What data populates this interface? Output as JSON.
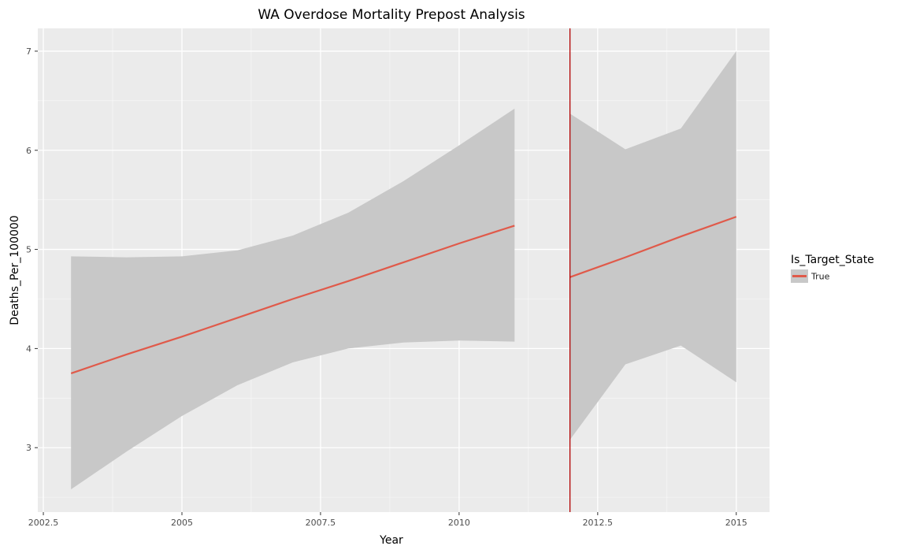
{
  "chart_data": {
    "type": "line",
    "title": "WA Overdose Mortality Prepost Analysis",
    "xlabel": "Year",
    "ylabel": "Deaths_Per_100000",
    "xlim": [
      2002.4,
      2015.6
    ],
    "ylim": [
      2.35,
      7.23
    ],
    "x_ticks": [
      2002.5,
      2005,
      2007.5,
      2010,
      2012.5,
      2015
    ],
    "x_tick_labels": [
      "2002.5",
      "2005",
      "2007.5",
      "2010",
      "2012.5",
      "2015"
    ],
    "y_ticks": [
      3,
      4,
      5,
      6,
      7
    ],
    "y_tick_labels": [
      "3",
      "4",
      "5",
      "6",
      "7"
    ],
    "grid": true,
    "intervention_line": {
      "x": 2012,
      "color": "#b20000"
    },
    "legend": {
      "title": "Is_Target_State",
      "placement": "right",
      "entries": [
        {
          "label": "True",
          "color": "#e05a4a"
        }
      ]
    },
    "colors": {
      "panel_background": "#ebebeb",
      "grid_major": "#ffffff",
      "ribbon": "#c8c8c8",
      "line": "#e05a4a"
    },
    "series": [
      {
        "segment": "pre",
        "x": [
          2003,
          2004,
          2005,
          2006,
          2007,
          2008,
          2009,
          2010,
          2011
        ],
        "y": [
          3.75,
          3.94,
          4.12,
          4.31,
          4.5,
          4.68,
          4.87,
          5.06,
          5.24
        ],
        "lower": [
          2.58,
          2.96,
          3.32,
          3.63,
          3.86,
          4.0,
          4.06,
          4.08,
          4.07
        ],
        "upper": [
          4.93,
          4.92,
          4.93,
          4.99,
          5.14,
          5.37,
          5.69,
          6.05,
          6.42
        ]
      },
      {
        "segment": "post",
        "x": [
          2012,
          2013,
          2014,
          2015
        ],
        "y": [
          4.72,
          4.92,
          5.13,
          5.33
        ],
        "lower": [
          3.08,
          3.84,
          4.03,
          3.66
        ],
        "upper": [
          6.37,
          6.01,
          6.22,
          7.0
        ]
      }
    ]
  }
}
